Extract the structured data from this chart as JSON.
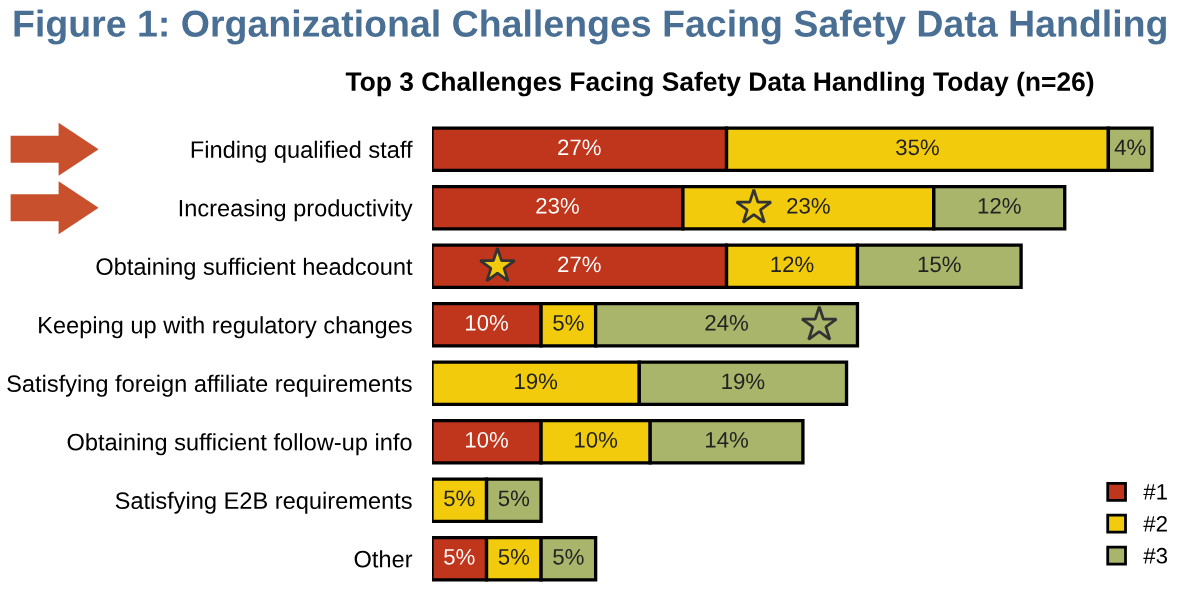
{
  "chart_data": {
    "type": "bar",
    "orientation": "horizontal",
    "stacked": true,
    "title": "Figure 1: Organizational Challenges Facing Safety Data Handling",
    "subtitle": "Top 3 Challenges Facing Safety Data Handling Today (n=26)",
    "categories": [
      "Finding qualified staff",
      "Increasing productivity",
      "Obtaining sufficient headcount",
      "Keeping up with regulatory changes",
      "Satisfying foreign affiliate requirements",
      "Obtaining sufficient follow-up info",
      "Satisfying E2B requirements",
      "Other"
    ],
    "series": [
      {
        "name": "#1",
        "color": "#c0361c",
        "values": [
          27,
          23,
          27,
          10,
          null,
          10,
          null,
          5
        ],
        "value_labels": [
          "27%",
          "23%",
          "27%",
          "10%",
          null,
          "10%",
          null,
          "5%"
        ]
      },
      {
        "name": "#2",
        "color": "#f2cc0c",
        "values": [
          35,
          23,
          12,
          5,
          19,
          10,
          5,
          5
        ],
        "value_labels": [
          "35%",
          "23%",
          "12%",
          "5%",
          "19%",
          "10%",
          "5%",
          "5%"
        ]
      },
      {
        "name": "#3",
        "color": "#a9b56a",
        "values": [
          4,
          12,
          15,
          24,
          19,
          14,
          5,
          5
        ],
        "value_labels": [
          "4%",
          "12%",
          "15%",
          "24%",
          "19%",
          "14%",
          "5%",
          "5%"
        ]
      }
    ],
    "tick_labels": "y",
    "grid": false,
    "legend": "bottom right"
  }
}
